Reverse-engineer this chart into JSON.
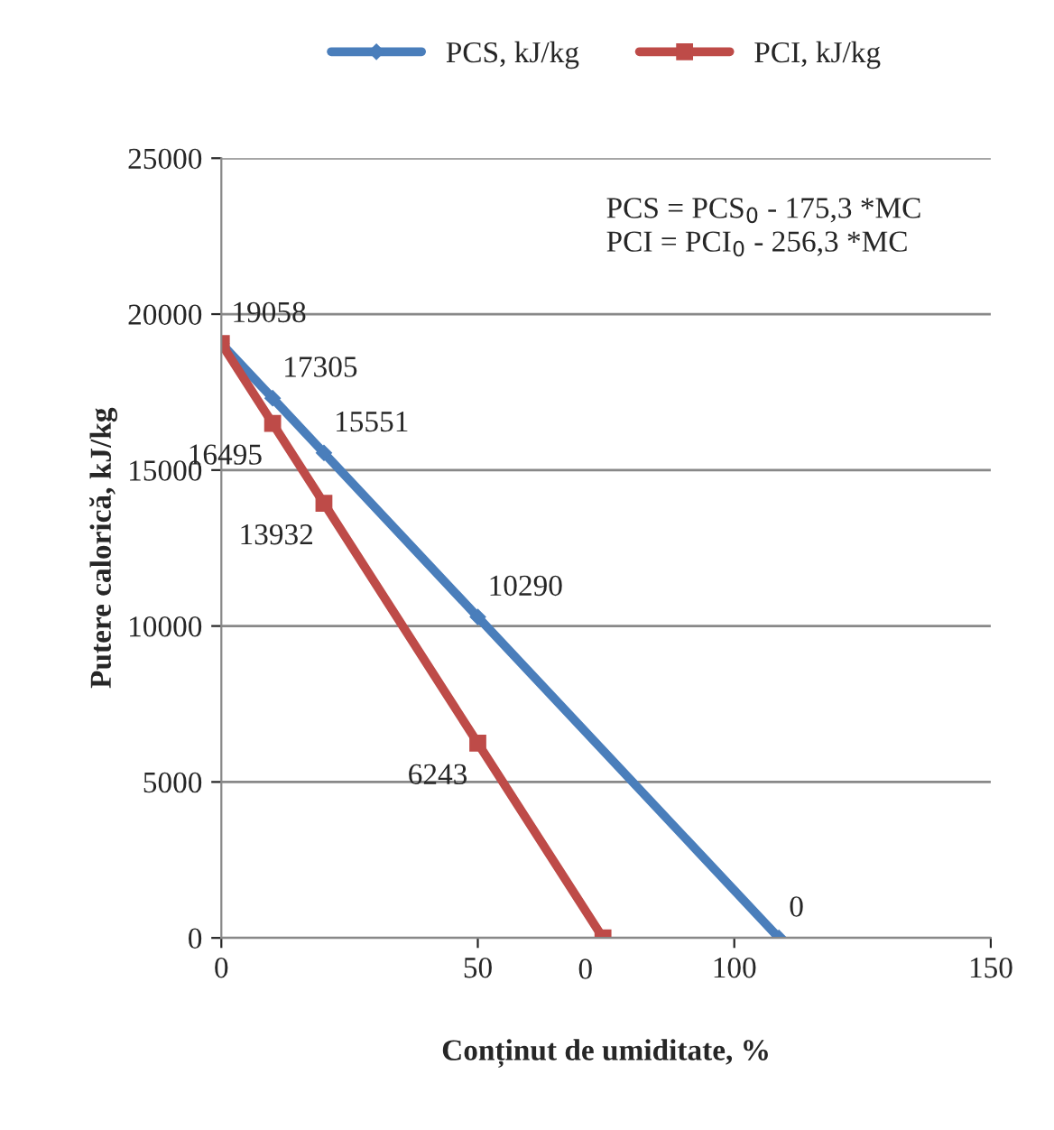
{
  "chart_data": {
    "type": "line",
    "xlabel": "Conținut de umiditate, %",
    "ylabel": "Putere calorică, kJ/kg",
    "xlim": [
      0,
      150
    ],
    "xticks": [
      0,
      50,
      100,
      150
    ],
    "ylim": [
      0,
      25000
    ],
    "yticks": [
      0,
      5000,
      10000,
      15000,
      20000,
      25000
    ],
    "grid": "y",
    "legend": "top",
    "line_style": "solid",
    "series": [
      {
        "name": "PCS, kJ/kg",
        "color": "#4a7ebb",
        "marker": "diamond",
        "x": [
          0,
          10,
          20,
          50,
          108.7
        ],
        "values": [
          19058,
          17305,
          15551,
          10290,
          0
        ],
        "value_labels": [
          "19058",
          "17305",
          "15551",
          "10290",
          "0"
        ]
      },
      {
        "name": "PCI, kJ/kg",
        "color": "#be4b48",
        "marker": "square",
        "x": [
          0,
          10,
          20,
          50,
          74.4
        ],
        "values": [
          19058,
          16495,
          13932,
          6243,
          0
        ],
        "value_labels": [
          null,
          "16495",
          "13932",
          "6243",
          "0"
        ]
      }
    ],
    "annotations": [
      "PCS = PCS$_{0}$ - 175,3 *MC",
      "PCI = PCI$_{0}$ - 256,3 *MC"
    ]
  }
}
